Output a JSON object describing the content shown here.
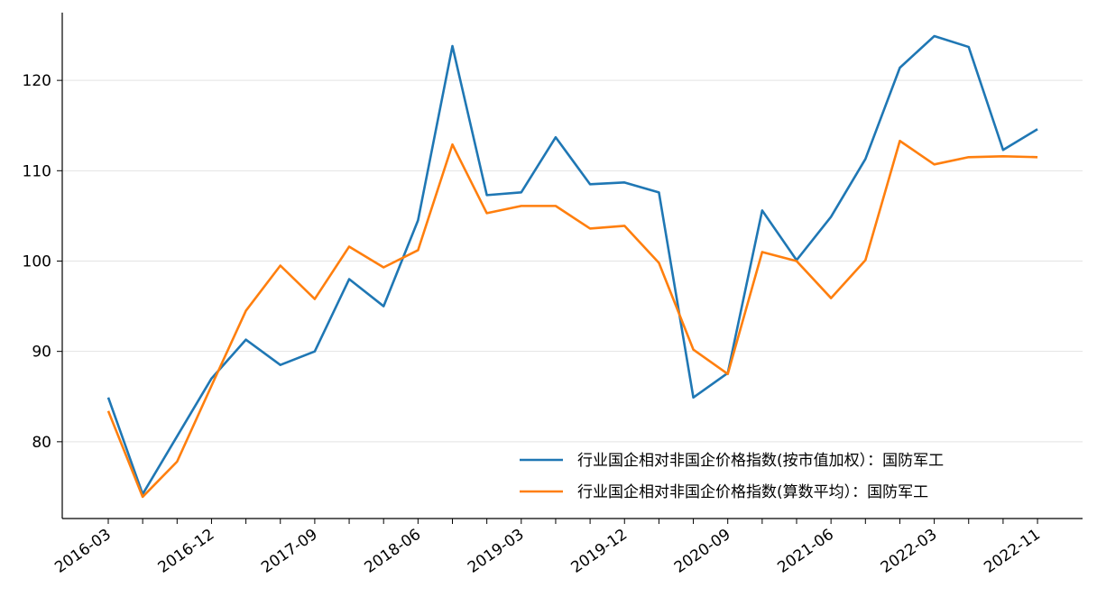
{
  "chart_data": {
    "type": "line",
    "categories": [
      "2016-03",
      null,
      null,
      "2016-12",
      null,
      null,
      "2017-09",
      null,
      null,
      "2018-06",
      null,
      null,
      "2019-03",
      null,
      null,
      "2019-12",
      null,
      null,
      "2020-09",
      null,
      null,
      "2021-06",
      null,
      null,
      "2022-03",
      null,
      null,
      "2022-11"
    ],
    "series": [
      {
        "name": "行业国企相对非国企价格指数(按市值加权）：国防军工",
        "color": "#1f77b4",
        "values": [
          84.9,
          74.2,
          80.6,
          87.0,
          91.3,
          88.5,
          90.0,
          98.0,
          95.0,
          104.5,
          123.8,
          107.3,
          107.6,
          113.7,
          108.5,
          108.7,
          107.6,
          84.9,
          87.6,
          105.6,
          100.1,
          104.9,
          111.3,
          121.4,
          124.9,
          123.7,
          112.3,
          114.6
        ]
      },
      {
        "name": "行业国企相对非国企价格指数(算数平均）：国防军工",
        "color": "#ff7f0e",
        "values": [
          83.4,
          73.9,
          77.8,
          86.2,
          94.5,
          99.5,
          95.8,
          101.6,
          99.3,
          101.2,
          112.9,
          105.3,
          106.1,
          106.1,
          103.6,
          103.9,
          99.8,
          90.2,
          87.5,
          101.0,
          100.0,
          95.9,
          100.1,
          113.3,
          110.7,
          111.5,
          111.6,
          111.5
        ]
      }
    ],
    "ylim": [
      71.5,
      127.5
    ],
    "yticks": [
      80,
      90,
      100,
      110,
      120
    ],
    "grid": true,
    "legend": "lower right"
  }
}
